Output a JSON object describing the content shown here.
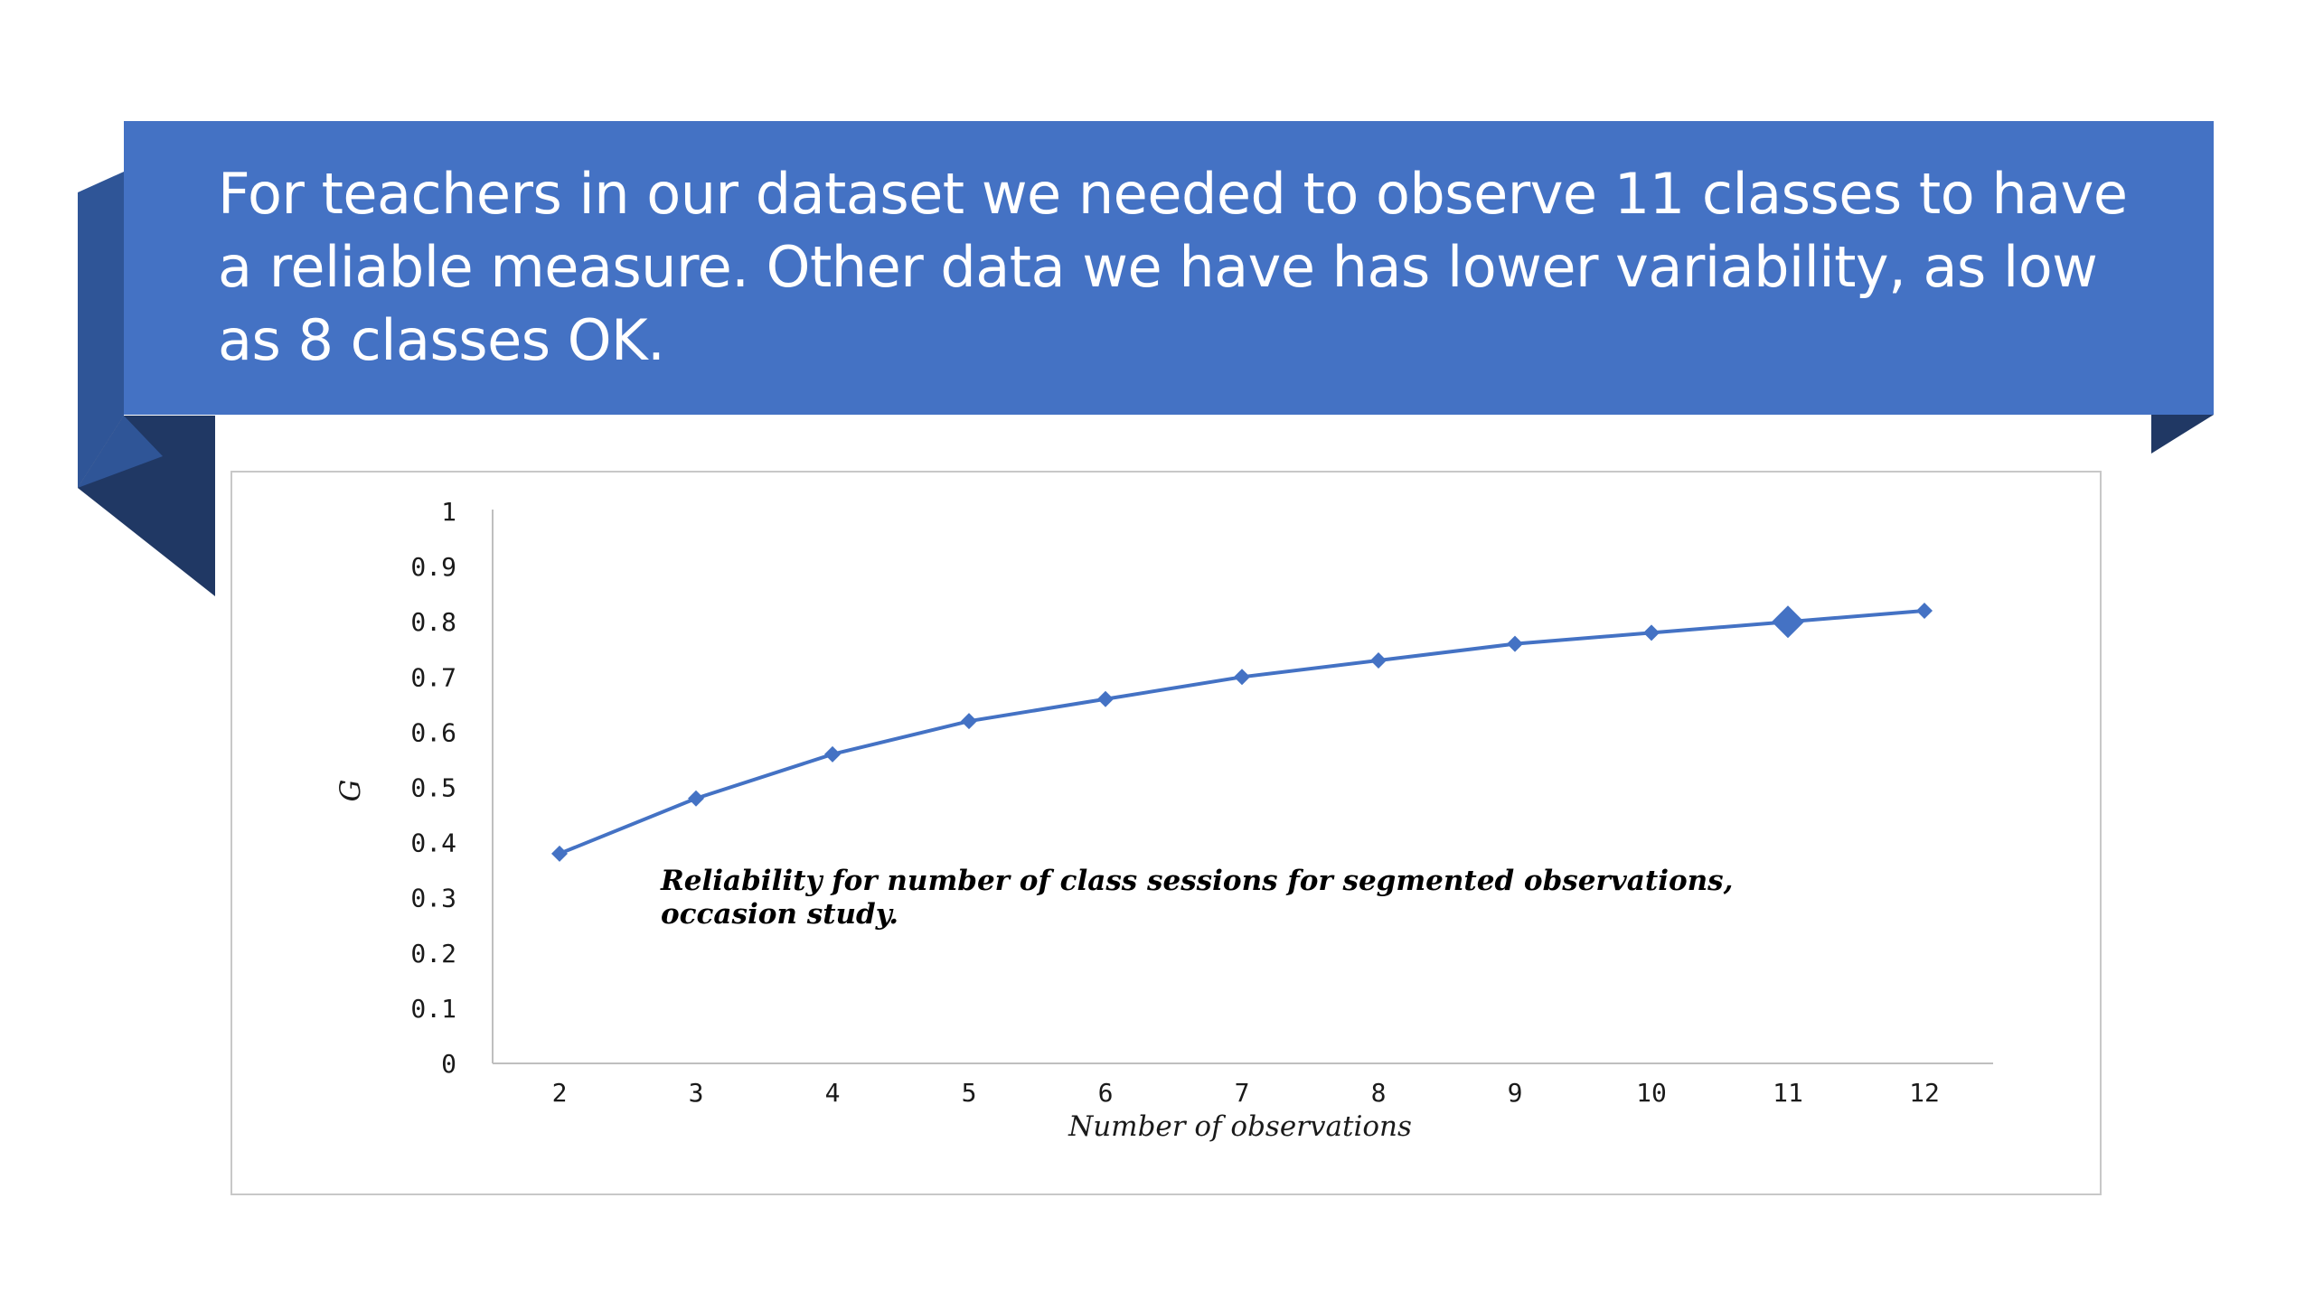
{
  "slide": {
    "heading": "For teachers in our dataset we needed to observe 11 classes to have a reliable measure.  Other data we have has lower variability, as low as 8 classes OK.",
    "banner_color": "#4472C4",
    "banner_shadow_color": "#2F5597",
    "banner_fold_color": "#203864"
  },
  "chart_data": {
    "type": "line",
    "x": [
      2,
      3,
      4,
      5,
      6,
      7,
      8,
      9,
      10,
      11,
      12
    ],
    "series": [
      {
        "values": [
          0.38,
          0.48,
          0.56,
          0.62,
          0.66,
          0.7,
          0.73,
          0.76,
          0.78,
          0.8,
          0.82
        ],
        "color": "#4472C4",
        "marker": "diamond",
        "highlight_index": 9
      }
    ],
    "x_ticks": [
      "2",
      "3",
      "4",
      "5",
      "6",
      "7",
      "8",
      "9",
      "10",
      "11",
      "12"
    ],
    "y_ticks": [
      "0",
      "0.1",
      "0.2",
      "0.3",
      "0.4",
      "0.5",
      "0.6",
      "0.7",
      "0.8",
      "0.9",
      "1"
    ],
    "ylim": [
      0,
      1
    ],
    "xlabel": "Number of observations",
    "ylabel": "G",
    "annotation_line1": "Reliability for number of class sessions for segmented observations,",
    "annotation_line2": "occasion study.",
    "grid": false,
    "legend": false
  }
}
